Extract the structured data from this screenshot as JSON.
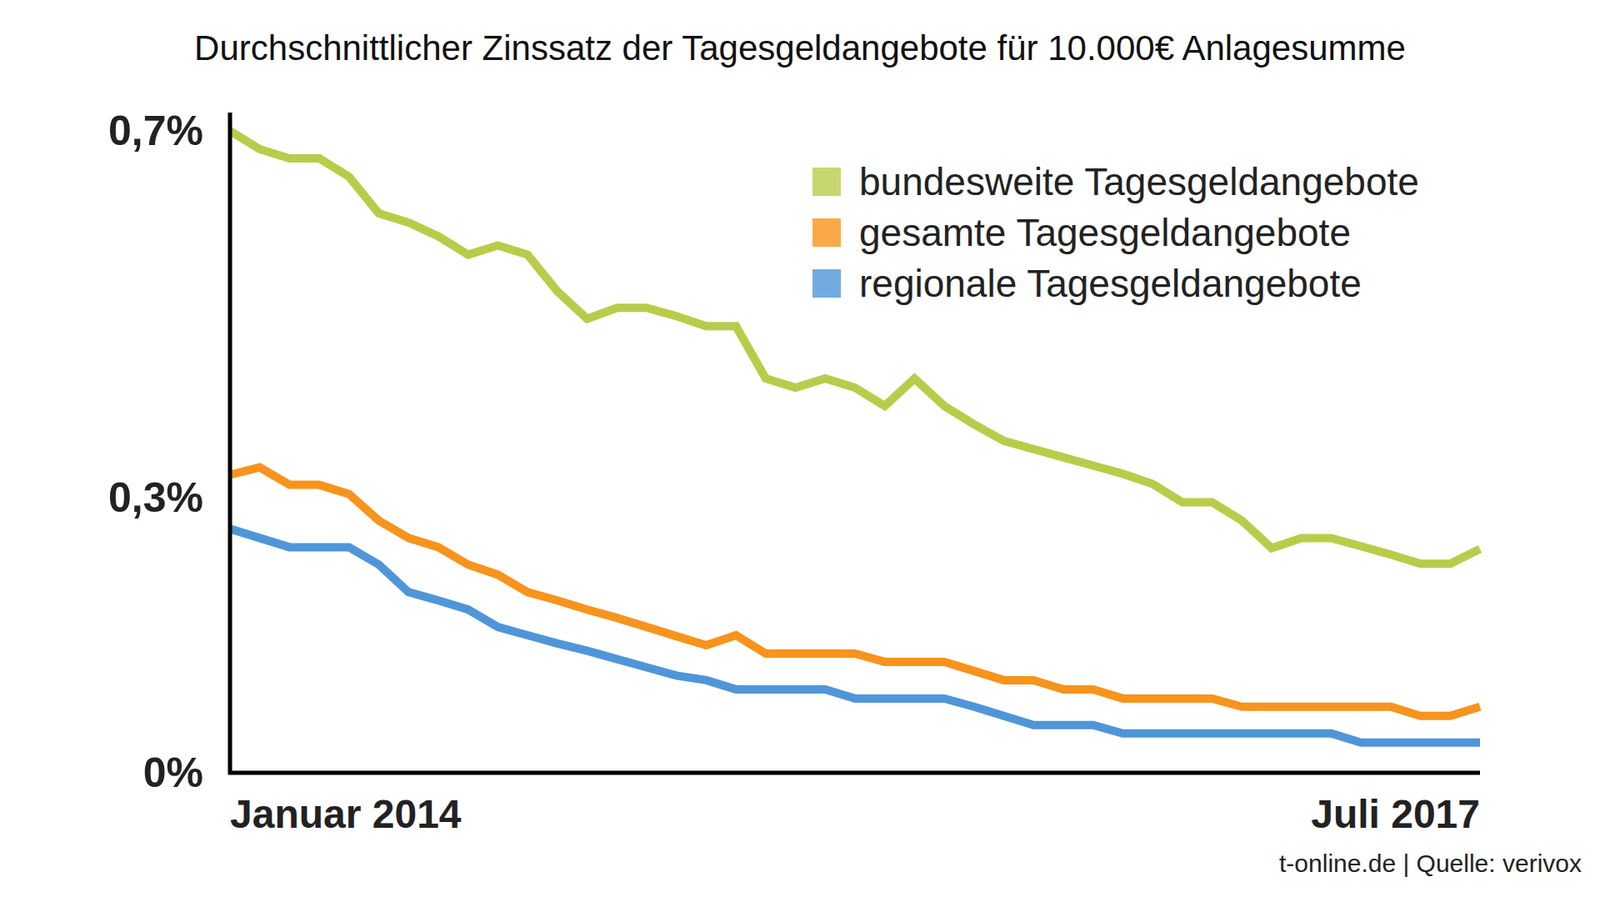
{
  "chart_data": {
    "type": "line",
    "title": "Durchschnittlicher Zinssatz der Tagesgeldangebote für 10.000€ Anlagesumme",
    "source": "t-online.de | Quelle: verivox",
    "categories": [
      "Januar 2014",
      null,
      null,
      null,
      null,
      null,
      null,
      null,
      null,
      null,
      null,
      null,
      null,
      null,
      null,
      null,
      null,
      null,
      null,
      null,
      null,
      null,
      null,
      null,
      null,
      null,
      null,
      null,
      null,
      null,
      null,
      null,
      null,
      null,
      null,
      null,
      null,
      null,
      null,
      null,
      null,
      null,
      "Juli 2017"
    ],
    "series": [
      {
        "name": "bundesweite Tagesgeldangebote",
        "color": "#b9cc4a",
        "values": [
          0.7,
          0.68,
          0.67,
          0.67,
          0.65,
          0.61,
          0.6,
          0.585,
          0.565,
          0.575,
          0.565,
          0.525,
          0.495,
          0.507,
          0.507,
          0.498,
          0.487,
          0.487,
          0.43,
          0.42,
          0.43,
          0.42,
          0.4,
          0.43,
          0.4,
          0.38,
          0.362,
          0.353,
          0.344,
          0.335,
          0.326,
          0.315,
          0.295,
          0.295,
          0.275,
          0.245,
          0.256,
          0.256,
          0.247,
          0.238,
          0.228,
          0.228,
          0.244
        ]
      },
      {
        "name": "gesamte Tagesgeldangebote",
        "color": "#f7941d",
        "values": [
          0.325,
          0.333,
          0.314,
          0.314,
          0.304,
          0.275,
          0.256,
          0.246,
          0.227,
          0.216,
          0.197,
          0.188,
          0.178,
          0.169,
          0.159,
          0.149,
          0.139,
          0.15,
          0.13,
          0.13,
          0.13,
          0.13,
          0.121,
          0.121,
          0.121,
          0.111,
          0.101,
          0.101,
          0.091,
          0.091,
          0.081,
          0.081,
          0.081,
          0.081,
          0.072,
          0.072,
          0.072,
          0.072,
          0.072,
          0.072,
          0.062,
          0.062,
          0.072
        ]
      },
      {
        "name": "regionale Tagesgeldangebote",
        "color": "#4f96d8",
        "values": [
          0.266,
          0.256,
          0.246,
          0.246,
          0.246,
          0.227,
          0.197,
          0.188,
          0.178,
          0.159,
          0.15,
          0.141,
          0.133,
          0.124,
          0.115,
          0.106,
          0.101,
          0.091,
          0.091,
          0.091,
          0.091,
          0.081,
          0.081,
          0.081,
          0.081,
          0.072,
          0.062,
          0.052,
          0.052,
          0.052,
          0.043,
          0.043,
          0.043,
          0.043,
          0.043,
          0.043,
          0.043,
          0.043,
          0.033,
          0.033,
          0.033,
          0.033,
          0.033
        ]
      }
    ],
    "ylim": [
      0,
      0.7
    ],
    "yticks": [
      {
        "value": 0,
        "label": "0%"
      },
      {
        "value": 0.3,
        "label": "0,3%"
      },
      {
        "value": 0.7,
        "label": "0,7%"
      }
    ],
    "grid": false,
    "legend": "upper right"
  }
}
